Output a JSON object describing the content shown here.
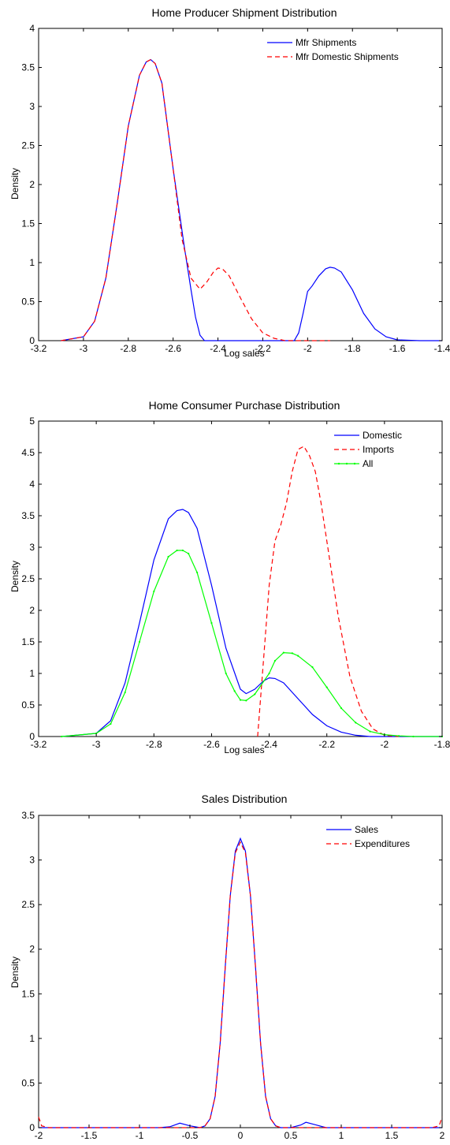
{
  "chart_data": [
    {
      "type": "line",
      "title": "Home Producer Shipment Distribution",
      "xlabel": "Log sales",
      "ylabel": "Density",
      "xlim": [
        -3.2,
        -1.4
      ],
      "ylim": [
        0,
        4
      ],
      "xticks": [
        -3.2,
        -3,
        -2.8,
        -2.6,
        -2.4,
        -2.2,
        -2,
        -1.8,
        -1.6,
        -1.4
      ],
      "xtick_labels": [
        "-3.2",
        "-3",
        "-2.8",
        "-2.6",
        "-2.4",
        "-2.2",
        "-2",
        "-1.8",
        "-1.6",
        "-1.4"
      ],
      "yticks": [
        0,
        0.5,
        1,
        1.5,
        2,
        2.5,
        3,
        3.5,
        4
      ],
      "ytick_labels": [
        "0",
        "0.5",
        "1",
        "1.5",
        "2",
        "2.5",
        "3",
        "3.5",
        "4"
      ],
      "grid": false,
      "legend_position": "top-right",
      "series": [
        {
          "name": "Mfr Shipments",
          "color": "#0000ff",
          "style": "solid",
          "x": [
            -3.1,
            -3.0,
            -2.95,
            -2.9,
            -2.85,
            -2.8,
            -2.75,
            -2.72,
            -2.7,
            -2.68,
            -2.65,
            -2.6,
            -2.55,
            -2.52,
            -2.5,
            -2.48,
            -2.46,
            -2.3,
            -2.2,
            -2.1,
            -2.06,
            -2.04,
            -2.02,
            -2.0,
            -1.98,
            -1.95,
            -1.92,
            -1.9,
            -1.88,
            -1.85,
            -1.8,
            -1.75,
            -1.7,
            -1.65,
            -1.6,
            -1.5,
            -1.4
          ],
          "y": [
            0,
            0.05,
            0.25,
            0.8,
            1.75,
            2.75,
            3.4,
            3.57,
            3.6,
            3.55,
            3.3,
            2.2,
            1.2,
            0.65,
            0.3,
            0.07,
            0,
            0,
            0,
            0,
            0,
            0.1,
            0.35,
            0.63,
            0.7,
            0.83,
            0.92,
            0.94,
            0.93,
            0.88,
            0.65,
            0.35,
            0.15,
            0.05,
            0.01,
            0,
            0
          ]
        },
        {
          "name": "Mfr Domestic Shipments",
          "color": "#ff0000",
          "style": "dashed",
          "x": [
            -3.1,
            -3.0,
            -2.95,
            -2.9,
            -2.85,
            -2.8,
            -2.75,
            -2.72,
            -2.7,
            -2.68,
            -2.65,
            -2.6,
            -2.56,
            -2.52,
            -2.48,
            -2.45,
            -2.42,
            -2.4,
            -2.38,
            -2.35,
            -2.3,
            -2.25,
            -2.2,
            -2.15,
            -2.1,
            -2.05,
            -2.0,
            -1.9
          ],
          "y": [
            0,
            0.05,
            0.25,
            0.8,
            1.75,
            2.75,
            3.4,
            3.57,
            3.6,
            3.55,
            3.3,
            2.2,
            1.3,
            0.8,
            0.66,
            0.75,
            0.88,
            0.93,
            0.92,
            0.83,
            0.55,
            0.28,
            0.1,
            0.03,
            0,
            0,
            0,
            0
          ]
        }
      ]
    },
    {
      "type": "line",
      "title": "Home Consumer Purchase Distribution",
      "xlabel": "Log sales",
      "ylabel": "Density",
      "xlim": [
        -3.2,
        -1.8
      ],
      "ylim": [
        0,
        5
      ],
      "xticks": [
        -3.2,
        -3,
        -2.8,
        -2.6,
        -2.4,
        -2.2,
        -2,
        -1.8
      ],
      "xtick_labels": [
        "-3.2",
        "-3",
        "-2.8",
        "-2.6",
        "-2.4",
        "-2.2",
        "-2",
        "-1.8"
      ],
      "yticks": [
        0,
        0.5,
        1,
        1.5,
        2,
        2.5,
        3,
        3.5,
        4,
        4.5,
        5
      ],
      "ytick_labels": [
        "0",
        "0.5",
        "1",
        "1.5",
        "2",
        "2.5",
        "3",
        "3.5",
        "4",
        "4.5",
        "5"
      ],
      "grid": false,
      "legend_position": "top-right",
      "series": [
        {
          "name": "Domestic",
          "color": "#0000ff",
          "style": "solid",
          "x": [
            -3.12,
            -3.0,
            -2.95,
            -2.9,
            -2.85,
            -2.8,
            -2.75,
            -2.72,
            -2.7,
            -2.68,
            -2.65,
            -2.6,
            -2.55,
            -2.5,
            -2.48,
            -2.45,
            -2.42,
            -2.4,
            -2.38,
            -2.35,
            -2.3,
            -2.25,
            -2.2,
            -2.15,
            -2.1,
            -2.05,
            -2.0,
            -1.9,
            -1.8
          ],
          "y": [
            0,
            0.05,
            0.25,
            0.85,
            1.8,
            2.8,
            3.45,
            3.58,
            3.6,
            3.55,
            3.3,
            2.4,
            1.4,
            0.75,
            0.68,
            0.75,
            0.88,
            0.93,
            0.92,
            0.85,
            0.6,
            0.35,
            0.17,
            0.07,
            0.02,
            0,
            0,
            0,
            0
          ]
        },
        {
          "name": "Imports",
          "color": "#ff0000",
          "style": "dashed",
          "x": [
            -2.44,
            -2.42,
            -2.4,
            -2.38,
            -2.36,
            -2.34,
            -2.32,
            -2.3,
            -2.28,
            -2.26,
            -2.24,
            -2.22,
            -2.2,
            -2.16,
            -2.12,
            -2.08,
            -2.04,
            -2.0,
            -1.95
          ],
          "y": [
            0,
            1.2,
            2.4,
            3.1,
            3.35,
            3.7,
            4.2,
            4.55,
            4.6,
            4.45,
            4.2,
            3.7,
            3.1,
            1.9,
            0.95,
            0.4,
            0.12,
            0.02,
            0
          ]
        },
        {
          "name": "All",
          "color": "#00ff00",
          "style": "solid-dotted",
          "x": [
            -3.12,
            -3.0,
            -2.95,
            -2.9,
            -2.85,
            -2.8,
            -2.75,
            -2.72,
            -2.7,
            -2.68,
            -2.65,
            -2.6,
            -2.55,
            -2.52,
            -2.5,
            -2.48,
            -2.45,
            -2.4,
            -2.38,
            -2.35,
            -2.32,
            -2.3,
            -2.25,
            -2.2,
            -2.15,
            -2.1,
            -2.05,
            -2.0,
            -1.95,
            -1.9,
            -1.8
          ],
          "y": [
            0,
            0.05,
            0.2,
            0.7,
            1.5,
            2.3,
            2.85,
            2.95,
            2.95,
            2.9,
            2.6,
            1.8,
            1.0,
            0.72,
            0.58,
            0.57,
            0.67,
            1.0,
            1.2,
            1.33,
            1.32,
            1.28,
            1.1,
            0.78,
            0.45,
            0.22,
            0.08,
            0.03,
            0.01,
            0,
            0
          ]
        }
      ]
    },
    {
      "type": "line",
      "title": "Sales Distribution",
      "xlabel": "",
      "ylabel": "Density",
      "xlim": [
        -2,
        2
      ],
      "ylim": [
        0,
        3.5
      ],
      "xticks": [
        -2,
        -1.5,
        -1,
        -0.5,
        0,
        0.5,
        1,
        1.5,
        2
      ],
      "xtick_labels": [
        "-2",
        "-1.5",
        "-1",
        "-0.5",
        "0",
        "0.5",
        "1",
        "1.5",
        "2"
      ],
      "yticks": [
        0,
        0.5,
        1,
        1.5,
        2,
        2.5,
        3,
        3.5
      ],
      "ytick_labels": [
        "0",
        "0.5",
        "1",
        "1.5",
        "2",
        "2.5",
        "3",
        "3.5"
      ],
      "grid": false,
      "legend_position": "top-right",
      "series": [
        {
          "name": "Sales",
          "color": "#0000ff",
          "style": "solid",
          "x": [
            -2.0,
            -1.8,
            -0.8,
            -0.7,
            -0.6,
            -0.5,
            -0.4,
            -0.35,
            -0.3,
            -0.25,
            -0.2,
            -0.15,
            -0.1,
            -0.05,
            0.0,
            0.05,
            0.1,
            0.15,
            0.2,
            0.25,
            0.3,
            0.35,
            0.4,
            0.5,
            0.6,
            0.65,
            0.75,
            0.85,
            1.0,
            2.0
          ],
          "y": [
            0,
            0,
            0,
            0.01,
            0.05,
            0.02,
            0,
            0.02,
            0.1,
            0.35,
            0.95,
            1.8,
            2.6,
            3.1,
            3.24,
            3.1,
            2.6,
            1.8,
            0.95,
            0.35,
            0.1,
            0.02,
            0,
            0,
            0.03,
            0.06,
            0.03,
            0,
            0,
            0
          ]
        },
        {
          "name": "Expenditures",
          "color": "#ff0000",
          "style": "dashed",
          "x": [
            -2.0,
            -1.97,
            -1.9,
            -0.4,
            -0.35,
            -0.3,
            -0.25,
            -0.2,
            -0.15,
            -0.1,
            -0.05,
            0.0,
            0.05,
            0.1,
            0.15,
            0.2,
            0.25,
            0.3,
            0.35,
            0.4,
            1.9,
            1.97,
            2.0
          ],
          "y": [
            0.12,
            0.02,
            0,
            0,
            0.02,
            0.1,
            0.35,
            0.95,
            1.8,
            2.6,
            3.08,
            3.2,
            3.08,
            2.6,
            1.8,
            0.95,
            0.35,
            0.1,
            0.02,
            0,
            0,
            0.02,
            0.12
          ]
        }
      ]
    }
  ]
}
